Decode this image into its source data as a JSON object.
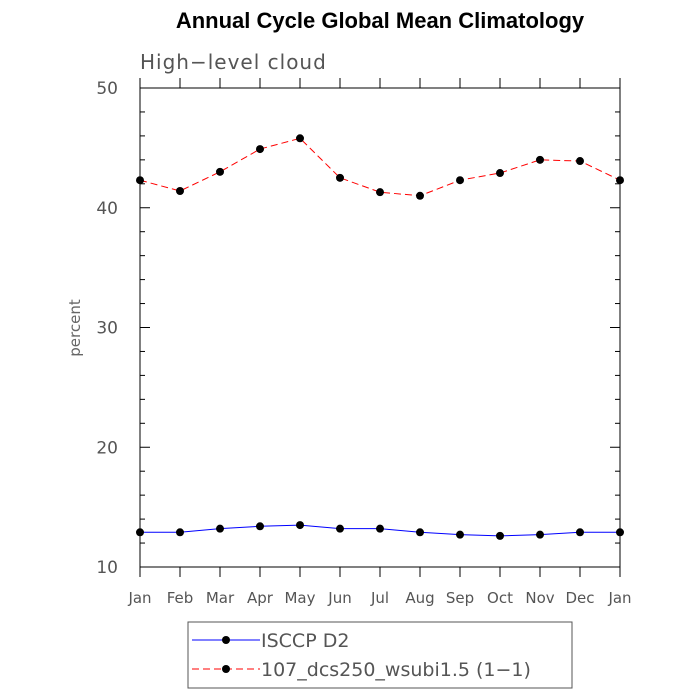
{
  "chart_data": {
    "type": "line",
    "title": "Annual Cycle Global Mean Climatology",
    "subtitle": "High−level cloud",
    "xlabel": "",
    "ylabel": "percent",
    "ylim": [
      10,
      50
    ],
    "yticks": [
      "10",
      "20",
      "30",
      "40",
      "50"
    ],
    "categories": [
      "Jan",
      "Feb",
      "Mar",
      "Apr",
      "May",
      "Jun",
      "Jul",
      "Aug",
      "Sep",
      "Oct",
      "Nov",
      "Dec",
      "Jan"
    ],
    "legend_placement": "bottom",
    "grid": false,
    "series": [
      {
        "name": "ISCCP D2",
        "color": "#0000ff",
        "dash": "solid",
        "values": [
          12.9,
          12.9,
          13.2,
          13.4,
          13.5,
          13.2,
          13.2,
          12.9,
          12.7,
          12.6,
          12.7,
          12.9,
          12.9
        ]
      },
      {
        "name": "107_dcs250_wsubi1.5 (1−1)",
        "color": "#ff0000",
        "dash": "dashed",
        "values": [
          42.3,
          41.4,
          43.0,
          44.9,
          45.8,
          42.5,
          41.3,
          41.0,
          42.3,
          42.9,
          44.0,
          43.9,
          42.3
        ]
      }
    ]
  }
}
